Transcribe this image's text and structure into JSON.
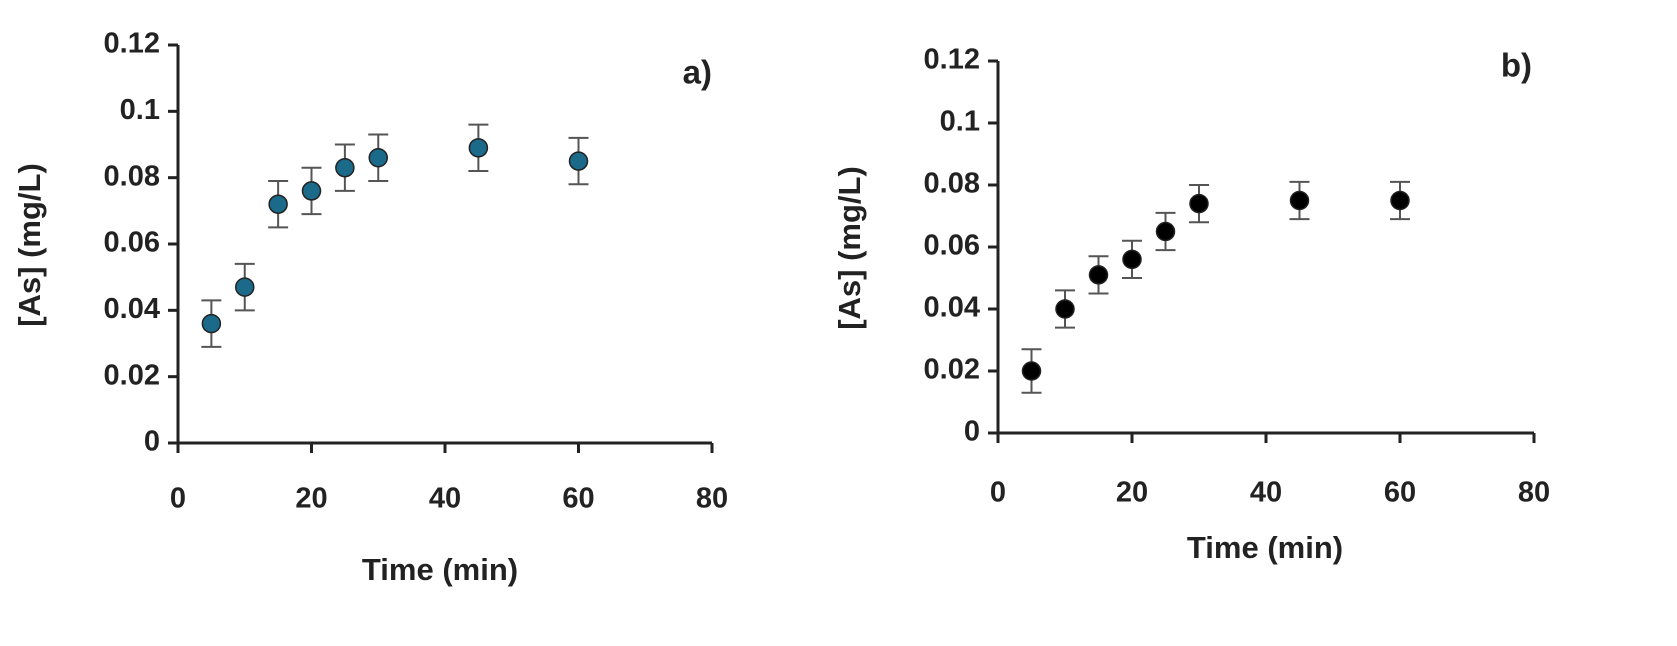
{
  "chart_data": [
    {
      "type": "scatter",
      "annotation": "a)",
      "xlabel": "Time (min)",
      "ylabel": "[As] (mg/L)",
      "x": [
        5,
        10,
        15,
        20,
        25,
        30,
        45,
        60
      ],
      "values": [
        0.036,
        0.047,
        0.072,
        0.076,
        0.083,
        0.086,
        0.089,
        0.085
      ],
      "errors": [
        0.007,
        0.007,
        0.007,
        0.007,
        0.007,
        0.007,
        0.007,
        0.007
      ],
      "color": "#1b6a8a",
      "xlim": [
        0,
        80
      ],
      "xticks": [
        0,
        20,
        40,
        60,
        80
      ],
      "ylim": [
        0,
        0.12
      ],
      "yticks": [
        0,
        0.02,
        0.04,
        0.06,
        0.08,
        0.1,
        0.12
      ]
    },
    {
      "type": "scatter",
      "annotation": "b)",
      "xlabel": "Time (min)",
      "ylabel": "[As] (mg/L)",
      "x": [
        5,
        10,
        15,
        20,
        25,
        30,
        45,
        60
      ],
      "values": [
        0.02,
        0.04,
        0.051,
        0.056,
        0.065,
        0.074,
        0.075,
        0.075
      ],
      "errors": [
        0.007,
        0.006,
        0.006,
        0.006,
        0.006,
        0.006,
        0.006,
        0.006
      ],
      "color": "#000000",
      "xlim": [
        0,
        80
      ],
      "xticks": [
        0,
        20,
        40,
        60,
        80
      ],
      "ylim": [
        0,
        0.12
      ],
      "yticks": [
        0,
        0.02,
        0.04,
        0.06,
        0.08,
        0.1,
        0.12
      ]
    }
  ]
}
